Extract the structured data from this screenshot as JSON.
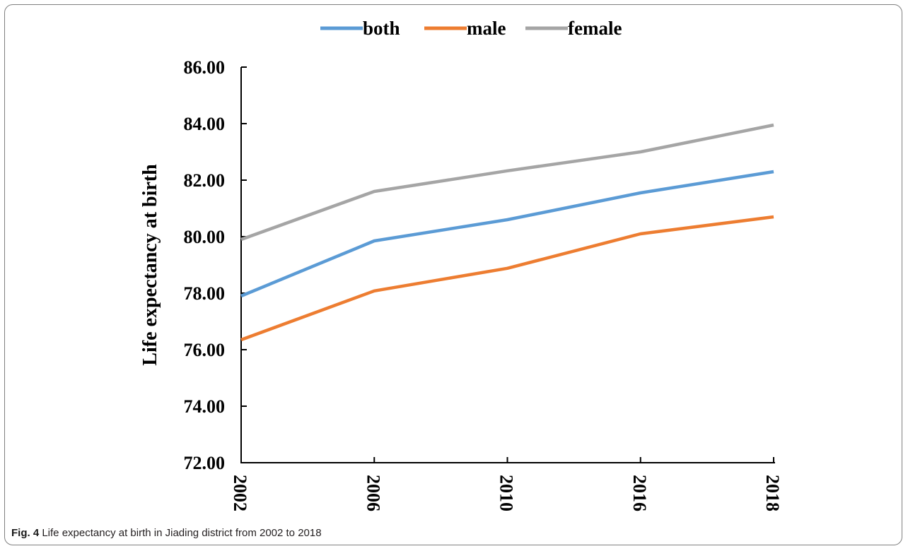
{
  "caption": {
    "label": "Fig. 4",
    "text": "Life expectancy at birth in Jiading district from 2002 to 2018"
  },
  "chart_data": {
    "type": "line",
    "categories": [
      "2002",
      "2006",
      "2010",
      "2016",
      "2018"
    ],
    "series": [
      {
        "name": "both",
        "color": "#5b9bd5",
        "values": [
          77.9,
          79.85,
          80.6,
          81.55,
          82.3
        ]
      },
      {
        "name": "male",
        "color": "#ed7d31",
        "values": [
          76.35,
          78.08,
          78.88,
          80.1,
          80.7
        ]
      },
      {
        "name": "female",
        "color": "#a5a5a5",
        "values": [
          79.9,
          81.6,
          82.33,
          83.0,
          83.95
        ]
      }
    ],
    "title": "",
    "xlabel": "",
    "ylabel": "Life expectancy at birth",
    "ylim": [
      72,
      86
    ],
    "yticks": [
      "72.00",
      "74.00",
      "76.00",
      "78.00",
      "80.00",
      "82.00",
      "84.00",
      "86.00"
    ],
    "grid": false,
    "legend_position": "top"
  }
}
